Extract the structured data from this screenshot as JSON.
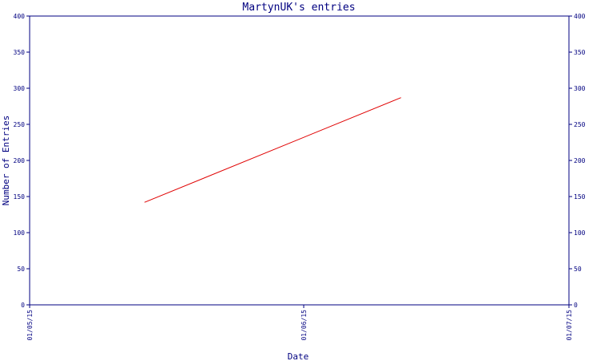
{
  "chart_data": {
    "type": "line",
    "title": "MartynUK's entries",
    "xlabel": "Date",
    "ylabel": "Number of Entries",
    "x_ticks": [
      "01/05/15",
      "01/06/15",
      "01/07/15"
    ],
    "y_ticks": [
      "0",
      "50",
      "100",
      "150",
      "200",
      "250",
      "300",
      "350",
      "400"
    ],
    "xlim": [
      "2015-05-01",
      "2015-07-01"
    ],
    "ylim": [
      0,
      400
    ],
    "series": [
      {
        "color": "#e00000",
        "points": [
          {
            "x": "2015-05-14",
            "y": 142
          },
          {
            "x": "2015-06-12",
            "y": 287
          }
        ]
      }
    ],
    "grid": false,
    "axis_color": "#000080"
  }
}
